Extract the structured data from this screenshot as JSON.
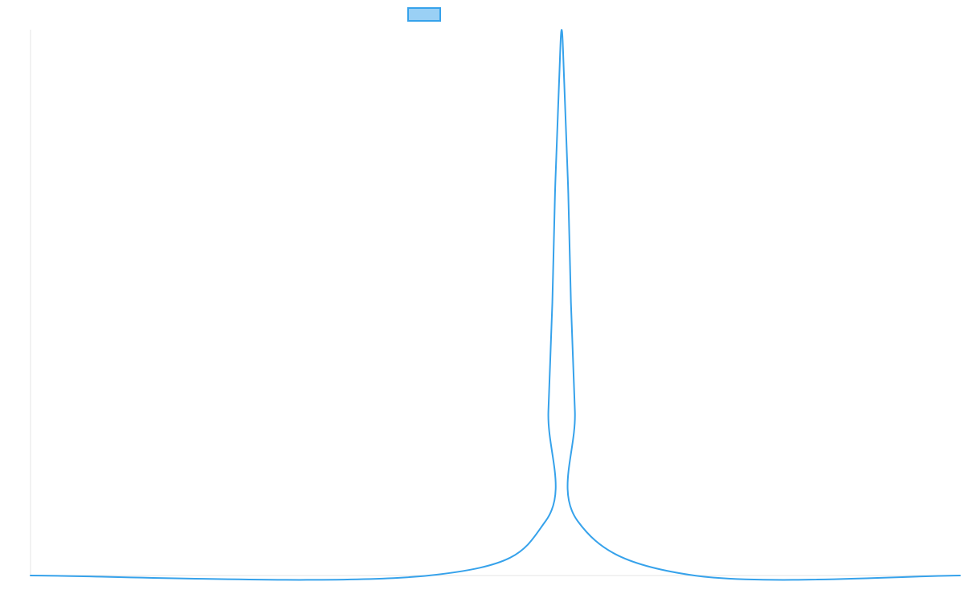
{
  "chart_data": {
    "type": "line",
    "title": "",
    "xlabel": "",
    "ylabel": "",
    "grid": false,
    "legend_position": "top-center",
    "ylim": [
      0,
      1
    ],
    "series": [
      {
        "color": "#36a2eb",
        "legend_fill": "#9ad0f5",
        "points": [
          [
            0,
            0
          ],
          [
            3,
            0
          ],
          [
            3.88,
            0.1
          ],
          [
            3.9,
            0.3
          ],
          [
            3.93,
            0.5
          ],
          [
            3.95,
            0.7
          ],
          [
            3.98,
            0.9
          ],
          [
            4,
            1
          ],
          [
            4.02,
            0.9
          ],
          [
            4.05,
            0.7
          ],
          [
            4.07,
            0.5
          ],
          [
            4.1,
            0.3
          ],
          [
            4.12,
            0.1
          ],
          [
            5,
            0
          ],
          [
            7,
            0
          ]
        ]
      }
    ],
    "xlim": [
      0,
      7
    ]
  },
  "colors": {
    "axis": "#e5e5e5",
    "line": "#36a2eb",
    "legend_fill": "#9ad0f5"
  }
}
